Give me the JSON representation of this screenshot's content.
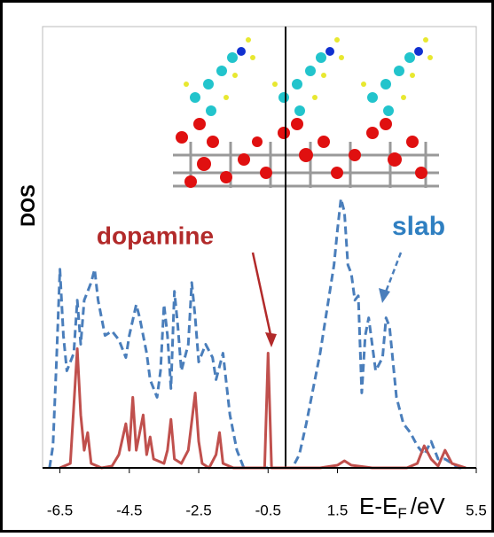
{
  "chart_data": {
    "type": "line",
    "y_label": "DOS",
    "x_label": "E-E",
    "x_label_sub": "F",
    "x_label_unit": "/eV",
    "xlim": [
      -7,
      5.5
    ],
    "xticks": [
      -6.5,
      -4.5,
      -2.5,
      -0.5,
      1.5,
      5.5
    ],
    "ylim": [
      0,
      500
    ],
    "annotations": [
      {
        "text": "dopamine",
        "color": "#b22a2a"
      },
      {
        "text": "slab",
        "color": "#2f7fc1"
      }
    ],
    "series": [
      {
        "name": "slab",
        "color": "#4a7ebb",
        "dash": true,
        "x": [
          -6.8,
          -6.7,
          -6.6,
          -6.5,
          -6.4,
          -6.3,
          -6.1,
          -6.0,
          -5.9,
          -5.8,
          -5.6,
          -5.5,
          -5.4,
          -5.2,
          -5.0,
          -4.8,
          -4.6,
          -4.5,
          -4.3,
          -4.2,
          -4.0,
          -3.9,
          -3.7,
          -3.6,
          -3.5,
          -3.4,
          -3.3,
          -3.2,
          -3.1,
          -3.0,
          -2.8,
          -2.7,
          -2.6,
          -2.5,
          -2.3,
          -2.1,
          -2.0,
          -1.8,
          -1.6,
          -1.4,
          -1.2,
          0.2,
          0.4,
          0.6,
          0.8,
          1.0,
          1.2,
          1.4,
          1.5,
          1.6,
          1.7,
          1.8,
          1.9,
          2.0,
          2.1,
          2.2,
          2.3,
          2.4,
          2.6,
          2.8,
          2.9,
          3.0,
          3.2,
          3.4,
          3.6,
          3.8,
          4.0,
          4.2,
          4.4,
          4.6,
          4.8,
          5.0,
          5.2
        ],
        "values": [
          0,
          25,
          120,
          225,
          150,
          110,
          130,
          190,
          140,
          190,
          210,
          225,
          190,
          150,
          155,
          145,
          125,
          150,
          185,
          170,
          130,
          100,
          80,
          110,
          185,
          150,
          90,
          200,
          160,
          110,
          140,
          210,
          170,
          120,
          140,
          125,
          100,
          130,
          60,
          20,
          0,
          0,
          15,
          50,
          90,
          130,
          180,
          230,
          270,
          305,
          290,
          230,
          220,
          190,
          195,
          85,
          150,
          170,
          110,
          125,
          170,
          160,
          80,
          50,
          40,
          25,
          15,
          30,
          10,
          10,
          5,
          0,
          0
        ]
      },
      {
        "name": "dopamine",
        "color": "#c0504d",
        "dash": false,
        "x": [
          -6.5,
          -6.2,
          -6.0,
          -5.9,
          -5.8,
          -5.7,
          -5.6,
          -5.3,
          -5.0,
          -4.8,
          -4.6,
          -4.5,
          -4.4,
          -4.3,
          -4.1,
          -4.0,
          -3.9,
          -3.8,
          -3.5,
          -3.4,
          -3.3,
          -3.2,
          -3.0,
          -2.8,
          -2.6,
          -2.5,
          -2.4,
          -2.2,
          -2.0,
          -1.9,
          -1.8,
          -1.5,
          -0.6,
          -0.5,
          -0.4,
          1.0,
          1.5,
          1.7,
          1.9,
          2.5,
          3.5,
          3.8,
          4.0,
          4.2,
          4.4,
          4.6,
          4.8,
          5.2
        ],
        "values": [
          0,
          5,
          135,
          60,
          20,
          40,
          5,
          0,
          2,
          15,
          50,
          20,
          80,
          20,
          60,
          15,
          35,
          10,
          5,
          20,
          55,
          10,
          5,
          20,
          85,
          30,
          5,
          0,
          15,
          40,
          5,
          0,
          0,
          130,
          0,
          0,
          3,
          8,
          3,
          0,
          0,
          5,
          25,
          10,
          2,
          20,
          5,
          0
        ]
      }
    ]
  }
}
